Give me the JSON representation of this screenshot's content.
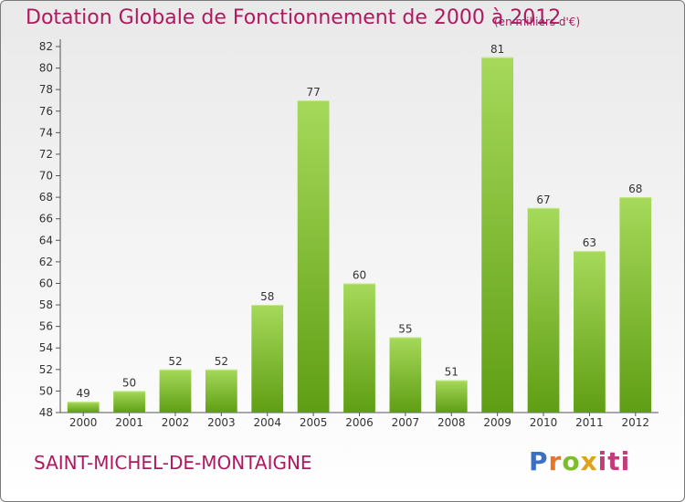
{
  "page": {
    "title": "Dotation Globale de Fonctionnement de 2000 à 2012",
    "units": "(en milliers d'€)",
    "commune": "SAINT-MICHEL-DE-MONTAIGNE",
    "logo": "Proxiti"
  },
  "colors": {
    "text_accent": "#b0185f",
    "bar_light": "#a6d95a",
    "bar_dark": "#5f9e14"
  },
  "chart_data": {
    "type": "bar",
    "title": "Dotation Globale de Fonctionnement de 2000 à 2012",
    "subtitle": "(en milliers d'€)",
    "xlabel": "",
    "ylabel": "",
    "categories": [
      "2000",
      "2001",
      "2002",
      "2003",
      "2004",
      "2005",
      "2006",
      "2007",
      "2008",
      "2009",
      "2010",
      "2011",
      "2012"
    ],
    "values": [
      49,
      50,
      52,
      52,
      58,
      77,
      60,
      55,
      51,
      81,
      67,
      63,
      68
    ],
    "ylim": [
      48,
      82
    ],
    "yticks": [
      48,
      50,
      52,
      54,
      56,
      58,
      60,
      62,
      64,
      66,
      68,
      70,
      72,
      74,
      76,
      78,
      80,
      82
    ],
    "grid": false,
    "legend": "none"
  }
}
